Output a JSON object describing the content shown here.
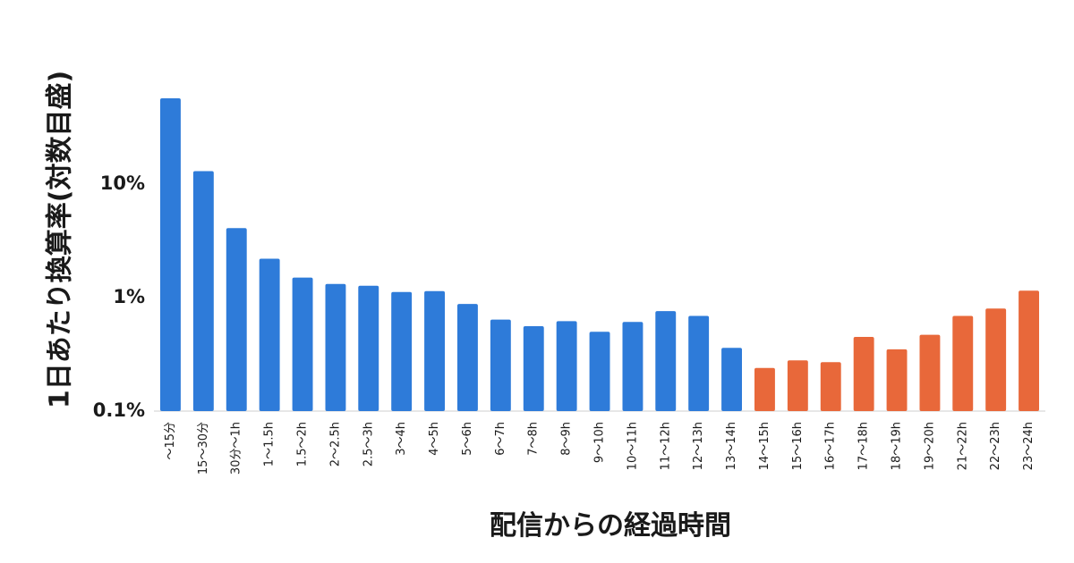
{
  "chart_data": {
    "type": "bar",
    "xlabel": "配信からの経過時間",
    "ylabel": "1日あたり換算率(対数目盛)",
    "yscale": "log",
    "ylim": [
      0.1,
      100
    ],
    "yticks": [
      0.1,
      1,
      10
    ],
    "ytick_labels": [
      "0.1%",
      "1%",
      "10%"
    ],
    "grid": false,
    "categories": [
      "〜15分",
      "15〜30分",
      "30分〜1h",
      "1〜1.5h",
      "1.5〜2h",
      "2〜2.5h",
      "2.5〜3h",
      "3〜4h",
      "4〜5h",
      "5〜6h",
      "6〜7h",
      "7〜8h",
      "8〜9h",
      "9〜10h",
      "10〜11h",
      "11〜12h",
      "12〜13h",
      "13〜14h",
      "14〜15h",
      "15〜16h",
      "16〜17h",
      "17〜18h",
      "18〜19h",
      "19〜20h",
      "21〜22h",
      "22〜23h",
      "23〜24h"
    ],
    "values": [
      57,
      13,
      4.1,
      2.2,
      1.5,
      1.32,
      1.27,
      1.12,
      1.14,
      0.88,
      0.64,
      0.56,
      0.62,
      0.5,
      0.61,
      0.76,
      0.69,
      0.36,
      0.24,
      0.28,
      0.27,
      0.45,
      0.35,
      0.47,
      0.69,
      0.8,
      1.15
    ],
    "colors": [
      "#2e7bd9",
      "#2e7bd9",
      "#2e7bd9",
      "#2e7bd9",
      "#2e7bd9",
      "#2e7bd9",
      "#2e7bd9",
      "#2e7bd9",
      "#2e7bd9",
      "#2e7bd9",
      "#2e7bd9",
      "#2e7bd9",
      "#2e7bd9",
      "#2e7bd9",
      "#2e7bd9",
      "#2e7bd9",
      "#2e7bd9",
      "#2e7bd9",
      "#e8683a",
      "#e8683a",
      "#e8683a",
      "#e8683a",
      "#e8683a",
      "#e8683a",
      "#e8683a",
      "#e8683a",
      "#e8683a"
    ]
  }
}
